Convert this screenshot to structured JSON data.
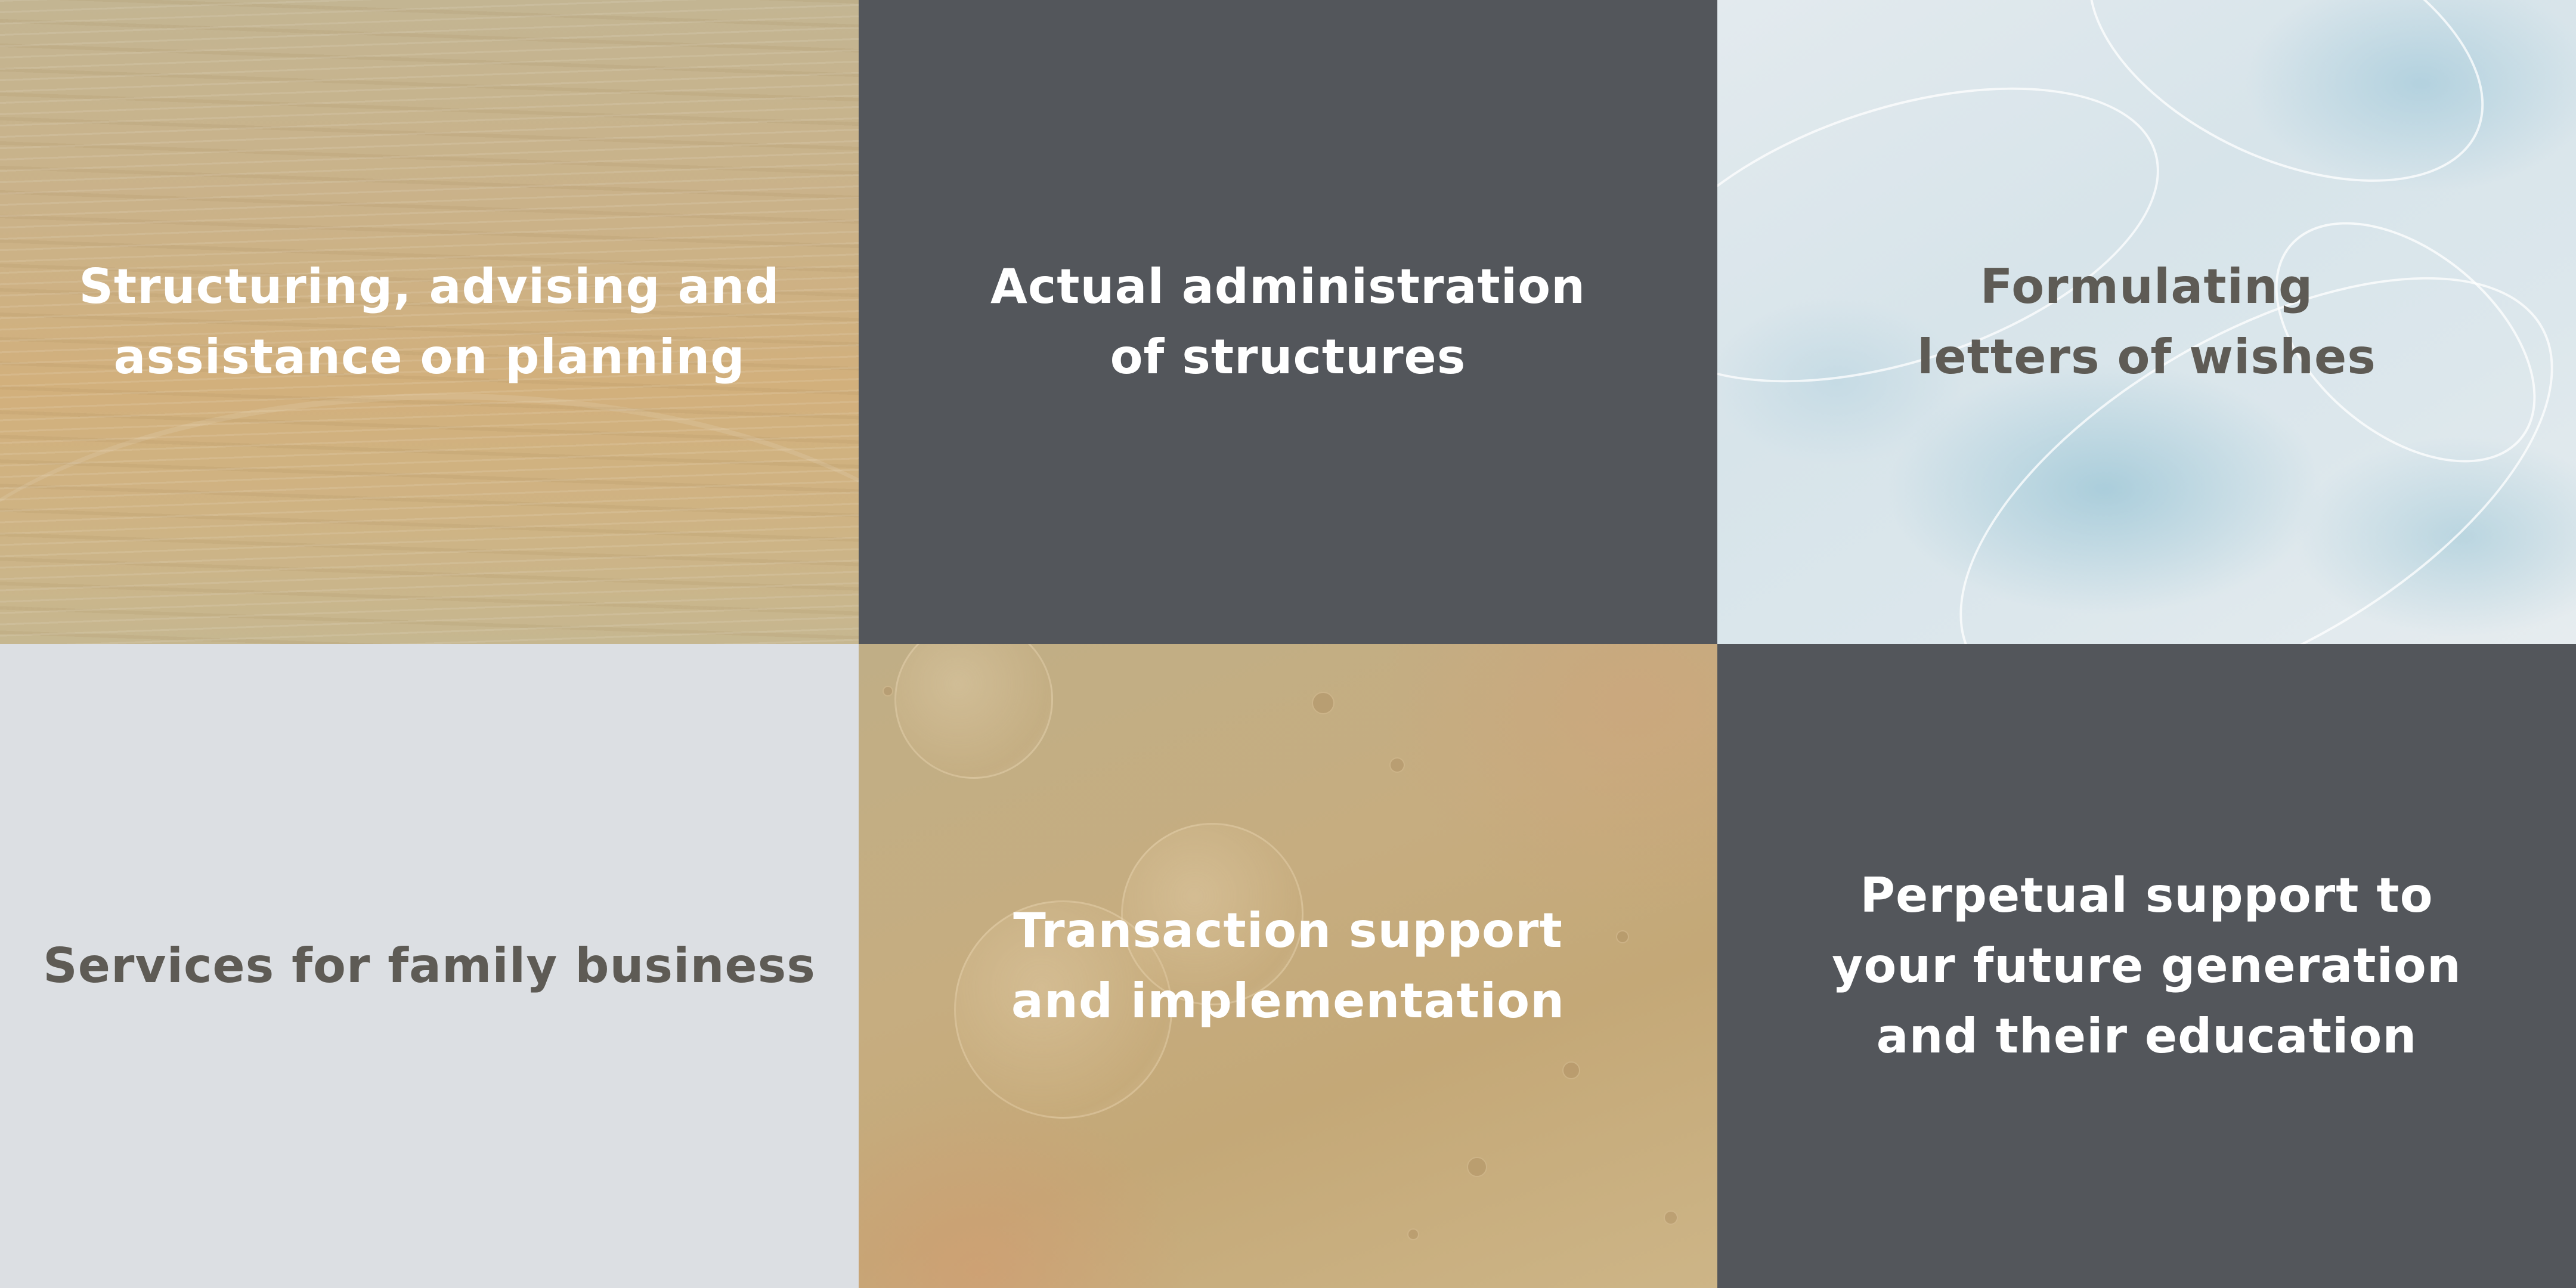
{
  "tiles": [
    {
      "label": "Structuring, advising and\nassistance on planning",
      "background": "#cbb288",
      "text_color": "#ffffff"
    },
    {
      "label": "Actual administration\nof structures",
      "background": "#53565b",
      "text_color": "#ffffff"
    },
    {
      "label": "Formulating\nletters of wishes",
      "background": "#dce7ec",
      "text_color": "#5e5b55"
    },
    {
      "label": "Services for family business",
      "background": "#dcdfe3",
      "text_color": "#5e5b55"
    },
    {
      "label": "Transaction support\nand implementation",
      "background": "#c6ad80",
      "text_color": "#ffffff"
    },
    {
      "label": "Perpetual support to\nyour future generation\nand their education",
      "background": "#53565b",
      "text_color": "#ffffff"
    }
  ]
}
